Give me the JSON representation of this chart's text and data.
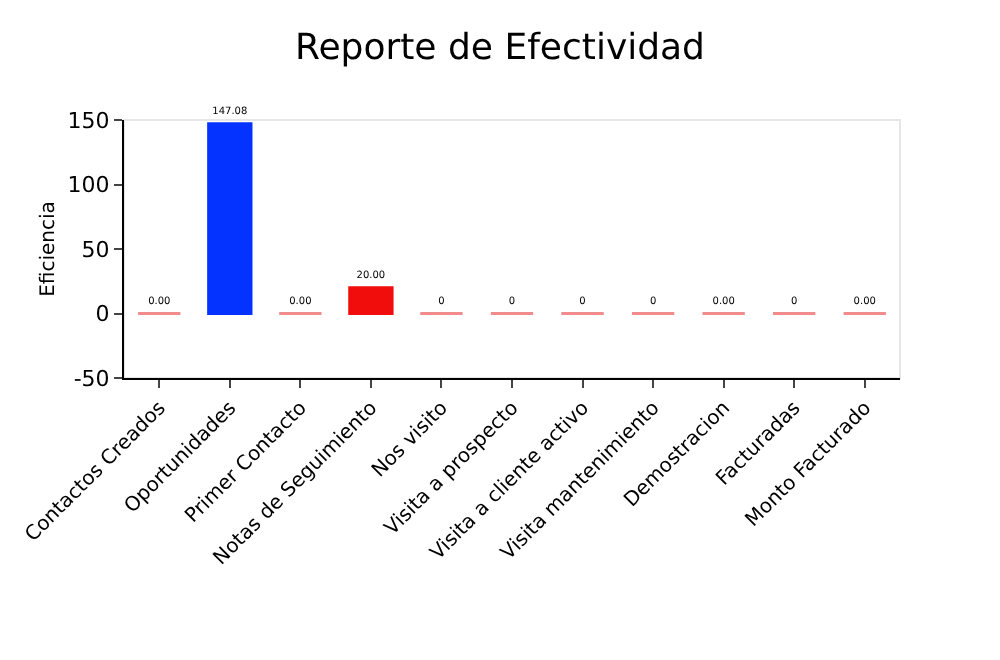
{
  "chart_data": {
    "type": "bar",
    "title": "Reporte de Efectividad",
    "ylabel": "Eficiencia",
    "categories": [
      "Contactos Creados",
      "Oportunidades",
      "Primer Contacto",
      "Notas de Seguimiento",
      "Nos visito",
      "Visita a prospecto",
      "Visita a cliente activo",
      "Visita mantenimiento",
      "Demostracion",
      "Facturadas",
      "Monto Facturado"
    ],
    "values": [
      0,
      147.08,
      0,
      20,
      0,
      0,
      0,
      0,
      0,
      0,
      0
    ],
    "value_labels": [
      "0.00",
      "147.08",
      "0.00",
      "20.00",
      "0",
      "0",
      "0",
      "0",
      "0.00",
      "0",
      "0.00"
    ],
    "colors": [
      "#f28b8b",
      "#0433ff",
      "#f28b8b",
      "#f20d0d",
      "#f28b8b",
      "#f28b8b",
      "#f28b8b",
      "#f28b8b",
      "#f28b8b",
      "#f28b8b",
      "#f28b8b"
    ],
    "ylim": [
      -50,
      150
    ],
    "yticks": [
      -50,
      0,
      50,
      100,
      150
    ],
    "grid": false,
    "legend": false
  }
}
